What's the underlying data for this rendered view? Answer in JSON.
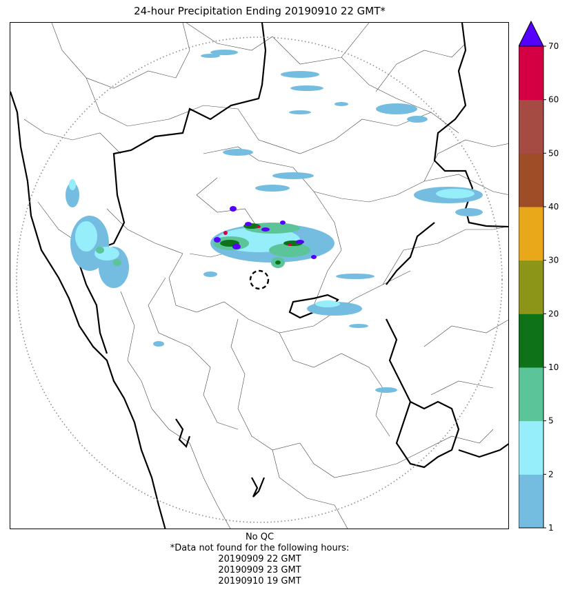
{
  "title": "24-hour Precipitation Ending 20190910 22 GMT*",
  "qc_note": "No QC",
  "missing_note": "*Data not found for the following hours:",
  "missing_hours": [
    "20190909 22 GMT",
    "20190909 23 GMT",
    "20190910 19 GMT"
  ],
  "colorbar": {
    "bounds": [
      1,
      2,
      5,
      10,
      20,
      30,
      40,
      50,
      60,
      70
    ],
    "tick_labels": [
      "1",
      "2",
      "5",
      "10",
      "20",
      "30",
      "40",
      "50",
      "60",
      "70"
    ],
    "colors": [
      "#74bde0",
      "#96eefb",
      "#5cc499",
      "#0e7318",
      "#8c9518",
      "#e8a819",
      "#9e4d26",
      "#a64a44",
      "#d30044"
    ],
    "extend_color": "#5500ff",
    "extend": "max"
  },
  "map": {
    "range_ring_color": "#888888",
    "echo_colors": {
      "light": "#74bde0",
      "cyan": "#96eefb",
      "green": "#5cc499",
      "dark_green": "#0e7318",
      "purple": "#5500ff",
      "brown": "#9e4d26",
      "red": "#d30044"
    }
  }
}
